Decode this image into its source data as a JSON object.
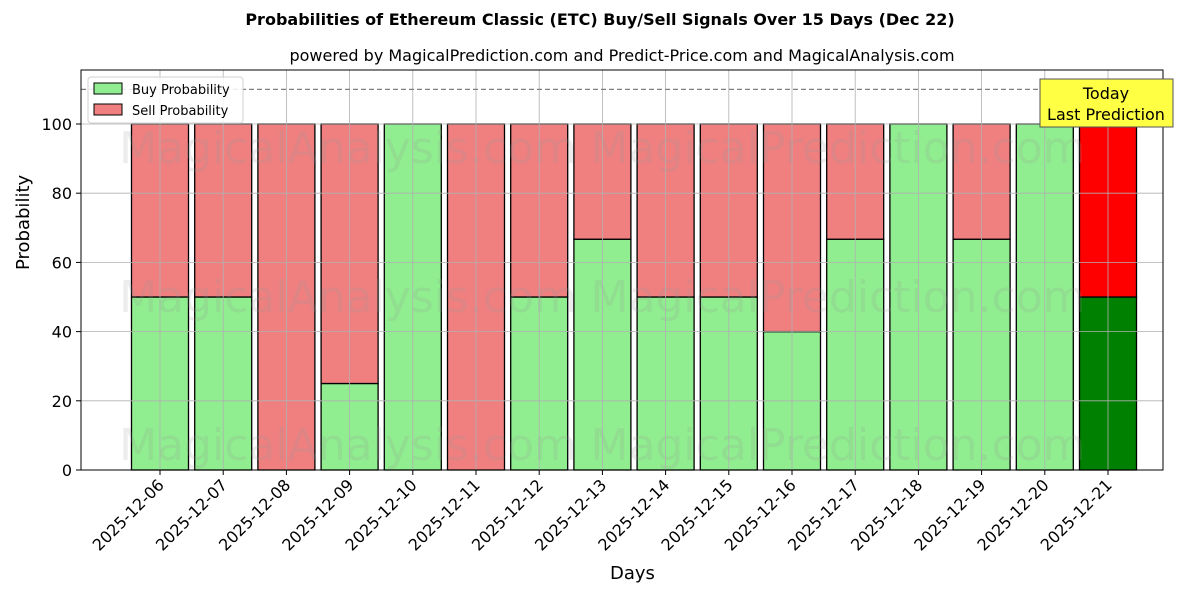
{
  "chart_data": {
    "type": "bar",
    "stacked": true,
    "title": "Probabilities of Ethereum Classic (ETC) Buy/Sell Signals Over 15 Days (Dec 22)",
    "subtitle": "powered by MagicalPrediction.com and Predict-Price.com and MagicalAnalysis.com",
    "xlabel": "Days",
    "ylabel": "Probability",
    "ylim": [
      0,
      115
    ],
    "yticks": [
      0,
      20,
      40,
      60,
      80,
      100
    ],
    "grid": true,
    "legend_position": "upper left",
    "categories": [
      "2025-12-06",
      "2025-12-07",
      "2025-12-08",
      "2025-12-09",
      "2025-12-10",
      "2025-12-11",
      "2025-12-12",
      "2025-12-13",
      "2025-12-14",
      "2025-12-15",
      "2025-12-16",
      "2025-12-17",
      "2025-12-18",
      "2025-12-19",
      "2025-12-20",
      "2025-12-21"
    ],
    "series": [
      {
        "name": "Buy Probability",
        "color": "#90ee90",
        "values": [
          50,
          50,
          0,
          25,
          100,
          0,
          50,
          66.7,
          50,
          50,
          40,
          66.7,
          100,
          66.7,
          100,
          50
        ]
      },
      {
        "name": "Sell Probability",
        "color": "#f08080",
        "values": [
          50,
          50,
          100,
          75,
          0,
          100,
          50,
          33.3,
          50,
          50,
          60,
          33.3,
          0,
          33.3,
          0,
          50
        ]
      }
    ],
    "highlight": {
      "index": 15,
      "buy_color": "#008000",
      "sell_color": "#ff0000"
    },
    "reference_line": {
      "y": 110,
      "style": "dashed",
      "color": "#808080"
    },
    "annotation": {
      "text_line1": "Today",
      "text_line2": "Last Prediction",
      "bg": "#ffff44"
    },
    "watermarks": [
      "MagicalAnalysis.com",
      "MagicalPrediction.com"
    ]
  }
}
